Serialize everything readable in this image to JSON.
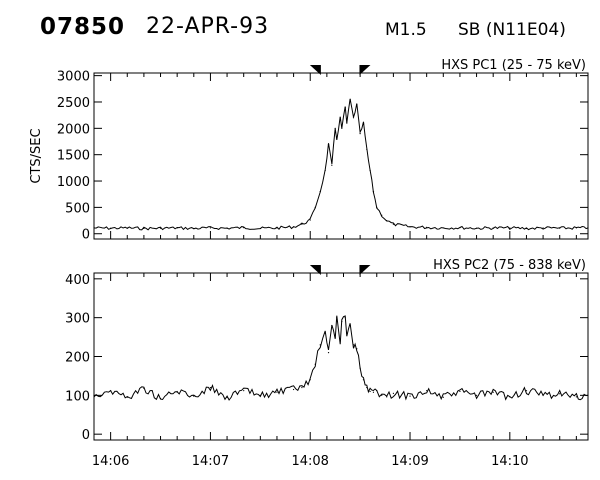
{
  "header": {
    "event_id": "07850",
    "date": "22-APR-93",
    "flare_class": "M1.5",
    "location": "SB (N11E04)"
  },
  "chart_data": [
    {
      "type": "line",
      "title": "HXS PC1 (25 - 75 keV)",
      "ylabel": "CTS/SEC",
      "xlabel": "",
      "xlim": [
        "14:05:50",
        "14:10:47"
      ],
      "ylim": [
        -100,
        3050
      ],
      "yticks": [
        0,
        500,
        1000,
        1500,
        2000,
        2500,
        3000
      ],
      "markers": [
        "14:08:04",
        "14:08:32"
      ],
      "series": [
        {
          "x": [
            "14:05:50",
            "14:06:00",
            "14:06:10",
            "14:06:20",
            "14:06:30",
            "14:06:40",
            "14:06:50",
            "14:07:00",
            "14:07:10",
            "14:07:20",
            "14:07:30",
            "14:07:40",
            "14:07:50",
            "14:07:55",
            "14:08:00",
            "14:08:03",
            "14:08:06",
            "14:08:09",
            "14:08:11",
            "14:08:13",
            "14:08:15",
            "14:08:16",
            "14:08:18",
            "14:08:19",
            "14:08:21",
            "14:08:22",
            "14:08:24",
            "14:08:26",
            "14:08:28",
            "14:08:30",
            "14:08:32",
            "14:08:34",
            "14:08:36",
            "14:08:38",
            "14:08:40",
            "14:08:43",
            "14:08:46",
            "14:08:50",
            "14:09:00",
            "14:09:10",
            "14:09:20",
            "14:09:30",
            "14:09:40",
            "14:09:50",
            "14:10:00",
            "14:10:10",
            "14:10:20",
            "14:10:30",
            "14:10:40",
            "14:10:47"
          ],
          "y": [
            110,
            105,
            110,
            100,
            105,
            110,
            100,
            110,
            105,
            115,
            100,
            110,
            130,
            180,
            260,
            500,
            800,
            1200,
            1700,
            1300,
            2000,
            1800,
            2200,
            2000,
            2400,
            2100,
            2550,
            2200,
            2450,
            1900,
            2100,
            1600,
            1200,
            800,
            500,
            350,
            250,
            180,
            130,
            120,
            110,
            115,
            105,
            110,
            110,
            100,
            110,
            105,
            110,
            110
          ]
        }
      ]
    },
    {
      "type": "line",
      "title": "HXS PC2 (75 - 838 keV)",
      "ylabel": "",
      "xlabel": "",
      "xlim": [
        "14:05:50",
        "14:10:47"
      ],
      "ylim": [
        -15,
        415
      ],
      "yticks": [
        0,
        100,
        200,
        300,
        400
      ],
      "xticks": [
        "14:06",
        "14:07",
        "14:08",
        "14:09",
        "14:10"
      ],
      "markers": [
        "14:08:04",
        "14:08:32"
      ],
      "series": [
        {
          "x": [
            "14:05:50",
            "14:06:00",
            "14:06:10",
            "14:06:20",
            "14:06:30",
            "14:06:40",
            "14:06:50",
            "14:07:00",
            "14:07:10",
            "14:07:20",
            "14:07:30",
            "14:07:40",
            "14:07:50",
            "14:07:55",
            "14:08:00",
            "14:08:03",
            "14:08:06",
            "14:08:09",
            "14:08:11",
            "14:08:13",
            "14:08:15",
            "14:08:16",
            "14:08:18",
            "14:08:19",
            "14:08:21",
            "14:08:22",
            "14:08:24",
            "14:08:26",
            "14:08:28",
            "14:08:30",
            "14:08:32",
            "14:08:34",
            "14:08:36",
            "14:08:38",
            "14:08:40",
            "14:08:43",
            "14:08:46",
            "14:08:50",
            "14:09:00",
            "14:09:10",
            "14:09:20",
            "14:09:30",
            "14:09:40",
            "14:09:50",
            "14:10:00",
            "14:10:10",
            "14:10:20",
            "14:10:30",
            "14:10:40",
            "14:10:47"
          ],
          "y": [
            100,
            112,
            95,
            118,
            92,
            110,
            98,
            120,
            95,
            112,
            100,
            108,
            115,
            120,
            140,
            180,
            230,
            260,
            210,
            280,
            250,
            300,
            240,
            290,
            300,
            260,
            280,
            230,
            220,
            170,
            140,
            120,
            110,
            108,
            112,
            100,
            96,
            105,
            98,
            112,
            95,
            110,
            100,
            108,
            96,
            112,
            100,
            104,
            96,
            100
          ]
        }
      ]
    }
  ]
}
